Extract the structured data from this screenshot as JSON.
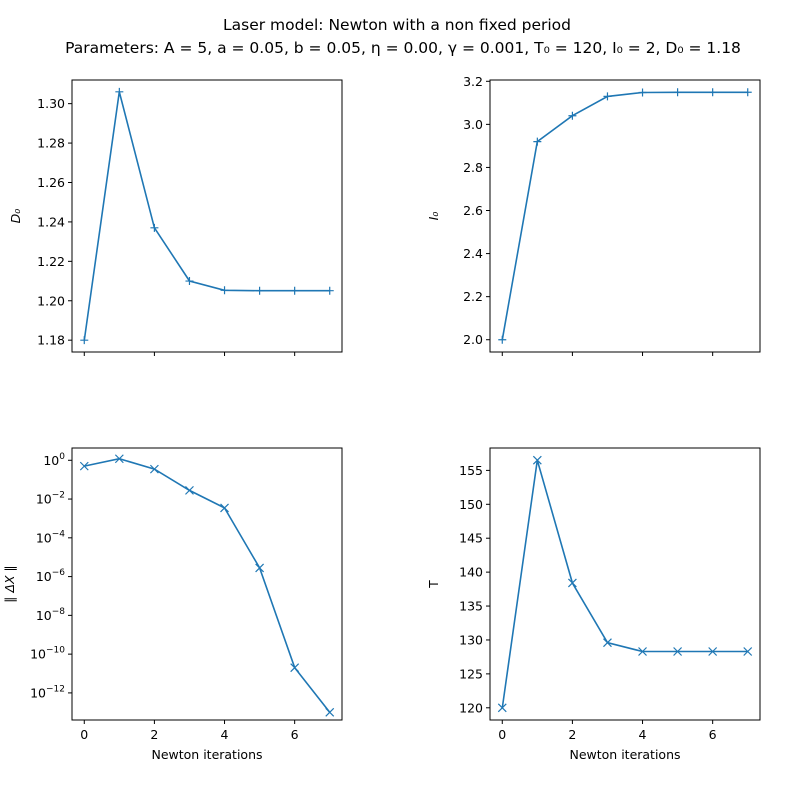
{
  "figure": {
    "title_line1": "Laser model: Newton with a non fixed period",
    "title_line2": "Parameters: A = 5, a = 0.05, b = 0.05, η = 0.00, γ = 0.001, T₀ = 120, I₀ = 2, D₀ = 1.18",
    "line_color": "#1f77b4"
  },
  "chart_data": [
    {
      "type": "line",
      "title": "",
      "xlabel": "",
      "ylabel": "D₀",
      "marker": "+",
      "x": [
        0,
        1,
        2,
        3,
        4,
        5,
        6,
        7
      ],
      "y": [
        1.18,
        1.306,
        1.237,
        1.21,
        1.2053,
        1.2051,
        1.2051,
        1.2051
      ],
      "xlim": [
        -0.35,
        7.35
      ],
      "ylim": [
        1.174,
        1.312
      ],
      "xticks": [
        0,
        2,
        4,
        6
      ],
      "yticks": [
        1.18,
        1.2,
        1.22,
        1.24,
        1.26,
        1.28,
        1.3
      ],
      "ytick_labels": [
        "1.18",
        "1.20",
        "1.22",
        "1.24",
        "1.26",
        "1.28",
        "1.30"
      ],
      "show_xtick_labels": false,
      "yscale": "linear",
      "grid": false
    },
    {
      "type": "line",
      "title": "",
      "xlabel": "",
      "ylabel": "I₀",
      "marker": "+",
      "x": [
        0,
        1,
        2,
        3,
        4,
        5,
        6,
        7
      ],
      "y": [
        2.0,
        2.92,
        3.04,
        3.13,
        3.148,
        3.149,
        3.149,
        3.149
      ],
      "xlim": [
        -0.35,
        7.35
      ],
      "ylim": [
        1.943,
        3.206
      ],
      "xticks": [
        0,
        2,
        4,
        6
      ],
      "yticks": [
        2.0,
        2.2,
        2.4,
        2.6,
        2.8,
        3.0,
        3.2
      ],
      "ytick_labels": [
        "2.0",
        "2.2",
        "2.4",
        "2.6",
        "2.8",
        "3.0",
        "3.2"
      ],
      "show_xtick_labels": false,
      "yscale": "linear",
      "grid": false
    },
    {
      "type": "line",
      "title": "",
      "xlabel": "Newton iterations",
      "ylabel": "∥ ΔX ∥",
      "marker": "x",
      "x": [
        0,
        1,
        2,
        3,
        4,
        5,
        6,
        7
      ],
      "y": [
        0.5,
        1.2,
        0.35,
        0.028,
        0.0035,
        2.8e-06,
        2e-11,
        1e-13
      ],
      "xlim": [
        -0.35,
        7.35
      ],
      "ylim": [
        4e-14,
        4.3
      ],
      "xticks": [
        0,
        2,
        4,
        6
      ],
      "yticks": [
        1,
        0.01,
        0.0001,
        1e-06,
        1e-08,
        1e-10,
        1e-12
      ],
      "ytick_labels": [
        {
          "base": "10",
          "exp": "0"
        },
        {
          "base": "10",
          "exp": "−2"
        },
        {
          "base": "10",
          "exp": "−4"
        },
        {
          "base": "10",
          "exp": "−6"
        },
        {
          "base": "10",
          "exp": "−8"
        },
        {
          "base": "10",
          "exp": "−10"
        },
        {
          "base": "10",
          "exp": "−12"
        }
      ],
      "show_xtick_labels": true,
      "yscale": "log",
      "grid": false
    },
    {
      "type": "line",
      "title": "",
      "xlabel": "Newton iterations",
      "ylabel": "T",
      "marker": "x",
      "x": [
        0,
        1,
        2,
        3,
        4,
        5,
        6,
        7
      ],
      "y": [
        120,
        156.5,
        138.4,
        129.6,
        128.3,
        128.3,
        128.3,
        128.3
      ],
      "xlim": [
        -0.35,
        7.35
      ],
      "ylim": [
        118.2,
        158.3
      ],
      "xticks": [
        0,
        2,
        4,
        6
      ],
      "yticks": [
        120,
        125,
        130,
        135,
        140,
        145,
        150,
        155
      ],
      "ytick_labels": [
        "120",
        "125",
        "130",
        "135",
        "140",
        "145",
        "150",
        "155"
      ],
      "show_xtick_labels": true,
      "yscale": "linear",
      "grid": false
    }
  ]
}
